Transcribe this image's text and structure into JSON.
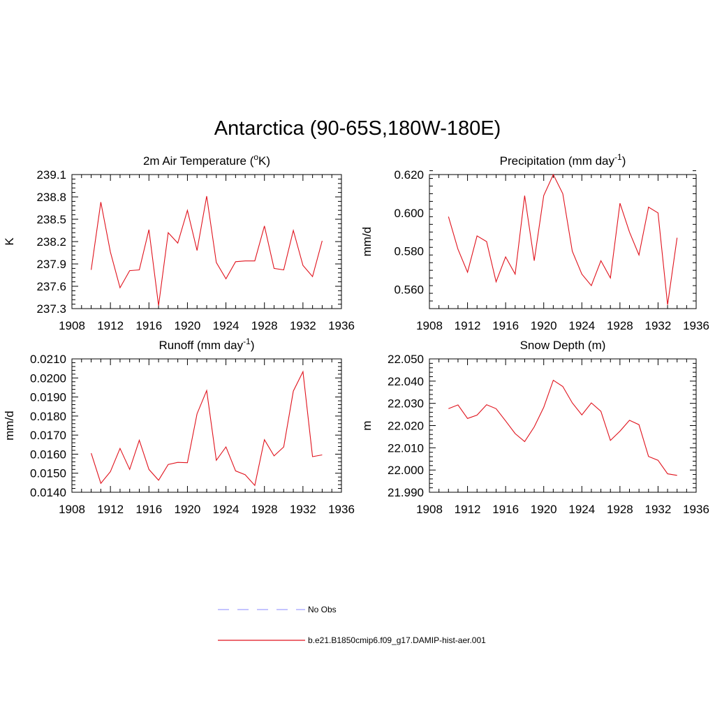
{
  "main_title": "Antarctica (90-65S,180W-180E)",
  "line_color": "#e0121c",
  "obs_color": "#a0a0ff",
  "legend": {
    "obs_label": "No Obs",
    "model_label": "b.e21.B1850cmip6.f09_g17.DAMIP-hist-aer.001"
  },
  "chart_data": [
    {
      "type": "line",
      "title": "2m Air Temperature (",
      "title_sup_pre": "o",
      "title_post": "K)",
      "title_sup": "",
      "title_end": "",
      "ylabel": "K",
      "xlim": [
        1908,
        1936
      ],
      "ylim": [
        237.3,
        239.1
      ],
      "x_ticks": [
        "1908",
        "1912",
        "1916",
        "1920",
        "1924",
        "1928",
        "1932",
        "1936"
      ],
      "y_ticks": [
        "237.3",
        "237.6",
        "237.9",
        "238.2",
        "238.5",
        "238.8",
        "239.1"
      ],
      "x": [
        1910,
        1911,
        1912,
        1913,
        1914,
        1915,
        1916,
        1917,
        1918,
        1919,
        1920,
        1921,
        1922,
        1923,
        1924,
        1925,
        1926,
        1927,
        1928,
        1929,
        1930,
        1931,
        1932,
        1933,
        1934
      ],
      "values": [
        237.82,
        238.73,
        238.06,
        237.58,
        237.81,
        237.82,
        238.36,
        237.34,
        238.32,
        238.18,
        238.62,
        238.08,
        238.81,
        237.92,
        237.7,
        237.93,
        237.94,
        237.94,
        238.41,
        237.84,
        237.82,
        238.35,
        237.88,
        237.73,
        238.21
      ]
    },
    {
      "type": "line",
      "title": "Precipitation (mm day",
      "title_sup_pre": "",
      "title_post": "",
      "title_sup": "-1",
      "title_end": ")",
      "ylabel": "mm/d",
      "xlim": [
        1908,
        1936
      ],
      "ylim": [
        0.55,
        0.62
      ],
      "x_ticks": [
        "1908",
        "1912",
        "1916",
        "1920",
        "1924",
        "1928",
        "1932",
        "1936"
      ],
      "y_ticks": [
        "0.560",
        "0.580",
        "0.600",
        "0.620"
      ],
      "x": [
        1910,
        1911,
        1912,
        1913,
        1914,
        1915,
        1916,
        1917,
        1918,
        1919,
        1920,
        1921,
        1922,
        1923,
        1924,
        1925,
        1926,
        1927,
        1928,
        1929,
        1930,
        1931,
        1932,
        1933,
        1934
      ],
      "values": [
        0.598,
        0.581,
        0.569,
        0.588,
        0.585,
        0.564,
        0.577,
        0.568,
        0.609,
        0.575,
        0.609,
        0.62,
        0.61,
        0.58,
        0.568,
        0.562,
        0.575,
        0.566,
        0.605,
        0.59,
        0.578,
        0.603,
        0.6,
        0.552,
        0.587
      ]
    },
    {
      "type": "line",
      "title": "Runoff (mm day",
      "title_sup_pre": "",
      "title_post": "",
      "title_sup": "-1",
      "title_end": ")",
      "ylabel": "mm/d",
      "xlim": [
        1908,
        1936
      ],
      "ylim": [
        0.014,
        0.021
      ],
      "x_ticks": [
        "1908",
        "1912",
        "1916",
        "1920",
        "1924",
        "1928",
        "1932",
        "1936"
      ],
      "y_ticks": [
        "0.0140",
        "0.0150",
        "0.0160",
        "0.0170",
        "0.0180",
        "0.0190",
        "0.0200",
        "0.0210"
      ],
      "x": [
        1910,
        1911,
        1912,
        1913,
        1914,
        1915,
        1916,
        1917,
        1918,
        1919,
        1920,
        1921,
        1922,
        1923,
        1924,
        1925,
        1926,
        1927,
        1928,
        1929,
        1930,
        1931,
        1932,
        1933,
        1934
      ],
      "values": [
        0.01605,
        0.01447,
        0.01508,
        0.0163,
        0.0152,
        0.01673,
        0.0152,
        0.01463,
        0.01546,
        0.01557,
        0.01555,
        0.01812,
        0.01934,
        0.01568,
        0.01638,
        0.01512,
        0.01492,
        0.01436,
        0.01676,
        0.01591,
        0.01638,
        0.01931,
        0.02033,
        0.01587,
        0.01596
      ]
    },
    {
      "type": "line",
      "title": "Snow Depth (m)",
      "title_sup_pre": "",
      "title_post": "",
      "title_sup": "",
      "title_end": "",
      "ylabel": "m",
      "xlim": [
        1908,
        1936
      ],
      "ylim": [
        21.99,
        22.05
      ],
      "x_ticks": [
        "1908",
        "1912",
        "1916",
        "1920",
        "1924",
        "1928",
        "1932",
        "1936"
      ],
      "y_ticks": [
        "21.990",
        "22.000",
        "22.010",
        "22.020",
        "22.030",
        "22.040",
        "22.050"
      ],
      "x": [
        1910,
        1911,
        1912,
        1913,
        1914,
        1915,
        1916,
        1917,
        1918,
        1919,
        1920,
        1921,
        1922,
        1923,
        1924,
        1925,
        1926,
        1927,
        1928,
        1929,
        1930,
        1931,
        1932,
        1933,
        1934
      ],
      "values": [
        22.0276,
        22.0293,
        22.0232,
        22.0247,
        22.0294,
        22.0276,
        22.0221,
        22.0164,
        22.0128,
        22.0194,
        22.0282,
        22.0404,
        22.0376,
        22.0302,
        22.0248,
        22.0302,
        22.0264,
        22.0133,
        22.0175,
        22.0224,
        22.0204,
        22.0061,
        22.0044,
        21.9983,
        21.9976
      ]
    }
  ]
}
